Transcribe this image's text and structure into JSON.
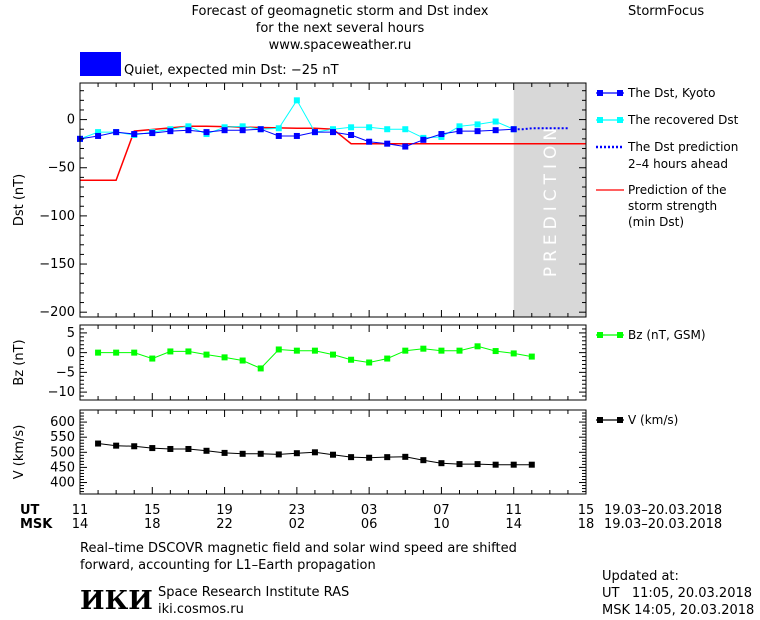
{
  "header": {
    "title_line1": "Forecast of geomagnetic storm and Dst index",
    "title_line2": "for the next several hours",
    "url": "www.spaceweather.ru",
    "brand": "StormFocus",
    "status_text": "Quiet, expected min Dst: −25 nT",
    "status_color": "#0000ff"
  },
  "colors": {
    "dst_kyoto": "#0000ff",
    "dst_recovered": "#00ffff",
    "dst_prediction": "#0000ff",
    "storm_strength": "#ff0000",
    "bz": "#00ff00",
    "v": "#000000",
    "prediction_band": "#d8d8d8",
    "prediction_text": "#ffffff"
  },
  "legend": {
    "dst_kyoto": "The Dst, Kyoto",
    "dst_recovered": "The recovered Dst",
    "dst_prediction_1": "The Dst prediction",
    "dst_prediction_2": "2–4 hours ahead",
    "storm_1": "Prediction of the",
    "storm_2": "storm strength",
    "storm_3": "(min Dst)",
    "bz": "Bz (nT, GSM)",
    "v": "V (km/s)"
  },
  "prediction_label": "PREDICTION",
  "time_axis": {
    "ut_label": "UT",
    "msk_label": "MSK",
    "ut_ticks": [
      "11",
      "15",
      "19",
      "23",
      "03",
      "07",
      "11",
      "15"
    ],
    "msk_ticks": [
      "14",
      "18",
      "22",
      "02",
      "06",
      "10",
      "14",
      "18"
    ],
    "date_range_ut": "19.03–20.03.2018",
    "date_range_msk": "19.03–20.03.2018"
  },
  "footer": {
    "note_line1": "Real–time DSCOVR magnetic field and solar wind speed are shifted",
    "note_line2": "forward, accounting for L1–Earth propagation",
    "logo_text": "ИКИ",
    "institute": "Space Research Institute RAS",
    "site": "iki.cosmos.ru",
    "updated_label": "Updated at:",
    "updated_ut": "UT   11:05, 20.03.2018",
    "updated_msk": "MSK 14:05, 20.03.2018"
  },
  "chart_data": [
    {
      "type": "line",
      "panel": "dst",
      "ylabel": "Dst (nT)",
      "ylim": [
        -205,
        38
      ],
      "yticks": [
        0,
        -50,
        -100,
        -150,
        -200
      ],
      "xlim_hours": [
        0,
        28
      ],
      "prediction_start_hour": 24,
      "series": [
        {
          "name": "The Dst, Kyoto",
          "x": [
            0,
            1,
            2,
            3,
            4,
            5,
            6,
            7,
            8,
            9,
            10,
            11,
            12,
            13,
            14,
            15,
            16,
            17,
            18,
            19,
            20,
            21,
            22,
            23,
            24
          ],
          "y": [
            -20,
            -17,
            -13,
            -15,
            -14,
            -12,
            -11,
            -13,
            -11,
            -11,
            -10,
            -17,
            -17,
            -13,
            -13,
            -16,
            -23,
            -25,
            -28,
            -21,
            -15,
            -12,
            -12,
            -11,
            -10
          ]
        },
        {
          "name": "The recovered Dst",
          "x": [
            0,
            1,
            2,
            3,
            4,
            5,
            6,
            7,
            8,
            9,
            10,
            11,
            12,
            13,
            14,
            15,
            16,
            17,
            18,
            19,
            20,
            21,
            22,
            23,
            24
          ],
          "y": [
            -20,
            -13,
            -13,
            -16,
            -13,
            -10,
            -7,
            -15,
            -8,
            -7,
            -10,
            -9,
            20,
            -13,
            -10,
            -8,
            -8,
            -10,
            -10,
            -19,
            -18,
            -7,
            -5,
            -2,
            -10
          ]
        },
        {
          "name": "The Dst prediction",
          "x": [
            24,
            24.5,
            25,
            25.5,
            26,
            26.5,
            27
          ],
          "y": [
            -10,
            -10,
            -9,
            -9,
            -9,
            -9,
            -9
          ]
        },
        {
          "name": "Prediction of the storm strength (min Dst)",
          "x": [
            0,
            2,
            3,
            6,
            7,
            12,
            13,
            14,
            15,
            24,
            28
          ],
          "y": [
            -63,
            -63,
            -12,
            -7,
            -7,
            -9,
            -9,
            -10,
            -25,
            -25,
            -25
          ]
        }
      ]
    },
    {
      "type": "line",
      "panel": "bz",
      "ylabel": "Bz (nT)",
      "ylim": [
        -12,
        7
      ],
      "yticks": [
        5,
        0,
        -5,
        -10
      ],
      "series": [
        {
          "name": "Bz (nT, GSM)",
          "x": [
            1,
            2,
            3,
            4,
            5,
            6,
            7,
            8,
            9,
            10,
            11,
            12,
            13,
            14,
            15,
            16,
            17,
            18,
            19,
            20,
            21,
            22,
            23,
            24,
            25
          ],
          "y": [
            0,
            0,
            0,
            -1.5,
            0.3,
            0.3,
            -0.5,
            -1.2,
            -2,
            -4,
            0.8,
            0.5,
            0.5,
            -0.5,
            -1.8,
            -2.5,
            -1.5,
            0.5,
            1,
            0.5,
            0.5,
            1.6,
            0.4,
            -0.2,
            -1
          ]
        }
      ]
    },
    {
      "type": "line",
      "panel": "v",
      "ylabel": "V (km/s)",
      "ylim": [
        362,
        640
      ],
      "yticks": [
        600,
        550,
        500,
        450,
        400
      ],
      "series": [
        {
          "name": "V (km/s)",
          "x": [
            1,
            2,
            3,
            4,
            5,
            6,
            7,
            8,
            9,
            10,
            11,
            12,
            13,
            14,
            15,
            16,
            17,
            18,
            19,
            20,
            21,
            22,
            23,
            24,
            25
          ],
          "y": [
            529,
            522,
            520,
            514,
            511,
            511,
            505,
            498,
            495,
            495,
            493,
            497,
            500,
            492,
            484,
            482,
            484,
            485,
            474,
            464,
            461,
            461,
            459,
            459,
            459
          ]
        }
      ]
    }
  ]
}
